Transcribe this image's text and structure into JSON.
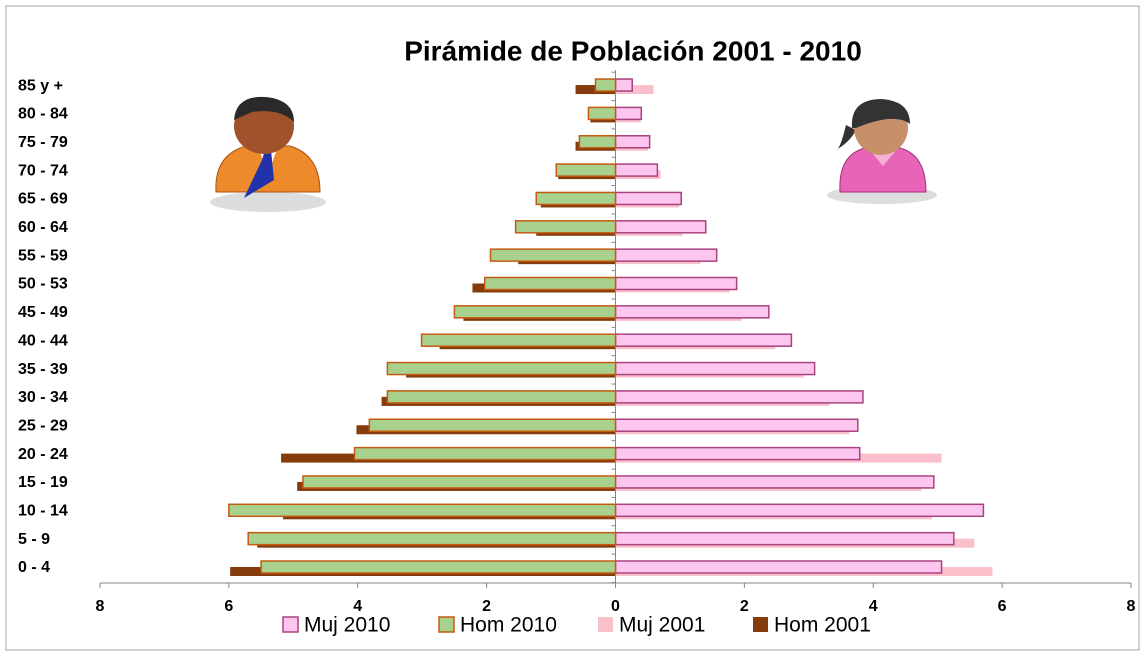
{
  "chart_data": {
    "type": "bar",
    "orientation": "horizontal",
    "title": "Pirámide de Población 2001 - 2010",
    "categories": [
      "0 - 4",
      "5 - 9",
      "10 - 14",
      "15 - 19",
      "20 - 24",
      "25 - 29",
      "30 - 34",
      "35 - 39",
      "40 - 44",
      "45 - 49",
      "50 - 53",
      "55 - 59",
      "60 - 64",
      "65 - 69",
      "70 - 74",
      "75 - 79",
      "80 - 84",
      "85 y  +"
    ],
    "series": [
      {
        "name": "Muj 2010",
        "color": "#fcc6ee",
        "edgecolor": "#a8437f",
        "values": [
          5.06,
          5.25,
          5.71,
          4.94,
          3.79,
          3.76,
          3.84,
          3.09,
          2.73,
          2.38,
          1.88,
          1.57,
          1.4,
          1.02,
          0.65,
          0.53,
          0.4,
          0.26
        ]
      },
      {
        "name": "Hom 2010",
        "color": "#a9d18e",
        "edgecolor": "#c55a11",
        "values": [
          -5.5,
          -5.7,
          -6.0,
          -4.85,
          -4.05,
          -3.82,
          -3.54,
          -3.54,
          -3.01,
          -2.5,
          -2.03,
          -1.94,
          -1.55,
          -1.23,
          -0.92,
          -0.56,
          -0.42,
          -0.31
        ]
      },
      {
        "name": "Muj 2001",
        "color": "#f9c0cb",
        "values": [
          5.85,
          5.57,
          4.91,
          4.75,
          5.06,
          3.63,
          3.32,
          2.92,
          2.48,
          1.96,
          1.77,
          1.32,
          1.04,
          0.99,
          0.7,
          0.5,
          0.39,
          0.59
        ]
      },
      {
        "name": "Hom 2001",
        "color": "#843c0c",
        "values": [
          -5.98,
          -5.56,
          -5.16,
          -4.94,
          -5.19,
          -4.02,
          -3.63,
          -3.25,
          -2.73,
          -2.36,
          -2.22,
          -1.51,
          -1.23,
          -1.16,
          -0.89,
          -0.62,
          -0.39,
          -0.62
        ]
      }
    ],
    "xlim": [
      -8,
      8
    ],
    "xticks": [
      {
        "value": -8,
        "label": "8"
      },
      {
        "value": -6,
        "label": "6"
      },
      {
        "value": -4,
        "label": "4"
      },
      {
        "value": -2,
        "label": "2"
      },
      0,
      2,
      4,
      6,
      8
    ],
    "legend": "bottom"
  }
}
